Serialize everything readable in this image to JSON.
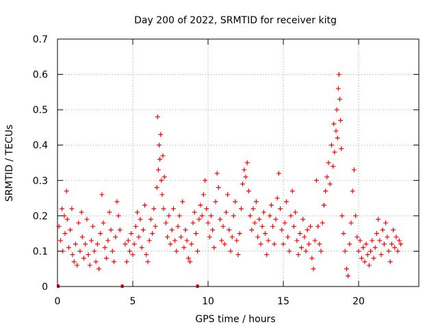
{
  "chart_data": {
    "type": "scatter",
    "title": "Day 200 of 2022, SRMTID for receiver kitg",
    "xlabel": "GPS time / hours",
    "ylabel": "SRMTID / TECUs",
    "xlim": [
      0,
      24
    ],
    "ylim": [
      0,
      0.7
    ],
    "x_ticks": [
      0,
      5,
      10,
      15,
      20
    ],
    "x_tick_labels": [
      "0",
      "5",
      "10",
      "15",
      "20"
    ],
    "y_ticks": [
      0,
      0.1,
      0.2,
      0.3,
      0.4,
      0.5,
      0.6,
      0.7
    ],
    "y_tick_labels": [
      "0",
      "0.1",
      "0.2",
      "0.3",
      "0.4",
      "0.5",
      "0.6",
      "0.7"
    ],
    "grid": true,
    "marker": "plus",
    "series_color": "#ff0000",
    "gap_markers_x": [
      0.05,
      4.3,
      9.3
    ],
    "series": [
      {
        "name": "SRMTID",
        "points": [
          [
            0.1,
            0.17
          ],
          [
            0.2,
            0.13
          ],
          [
            0.3,
            0.22
          ],
          [
            0.35,
            0.1
          ],
          [
            0.45,
            0.2
          ],
          [
            0.5,
            0.15
          ],
          [
            0.6,
            0.27
          ],
          [
            0.65,
            0.19
          ],
          [
            0.75,
            0.11
          ],
          [
            0.85,
            0.16
          ],
          [
            0.95,
            0.22
          ],
          [
            1.0,
            0.09
          ],
          [
            1.1,
            0.07
          ],
          [
            1.2,
            0.12
          ],
          [
            1.3,
            0.06
          ],
          [
            1.4,
            0.18
          ],
          [
            1.5,
            0.1
          ],
          [
            1.6,
            0.21
          ],
          [
            1.65,
            0.14
          ],
          [
            1.75,
            0.08
          ],
          [
            1.85,
            0.12
          ],
          [
            1.95,
            0.19
          ],
          [
            2.05,
            0.09
          ],
          [
            2.15,
            0.06
          ],
          [
            2.25,
            0.13
          ],
          [
            2.35,
            0.17
          ],
          [
            2.45,
            0.1
          ],
          [
            2.55,
            0.07
          ],
          [
            2.65,
            0.12
          ],
          [
            2.75,
            0.05
          ],
          [
            2.85,
            0.15
          ],
          [
            2.95,
            0.26
          ],
          [
            3.05,
            0.18
          ],
          [
            3.15,
            0.11
          ],
          [
            3.25,
            0.08
          ],
          [
            3.35,
            0.13
          ],
          [
            3.45,
            0.21
          ],
          [
            3.55,
            0.16
          ],
          [
            3.65,
            0.1
          ],
          [
            3.75,
            0.07
          ],
          [
            3.85,
            0.14
          ],
          [
            3.95,
            0.24
          ],
          [
            4.05,
            0.2
          ],
          [
            4.15,
            0.16
          ],
          [
            4.5,
            0.12
          ],
          [
            4.6,
            0.07
          ],
          [
            4.7,
            0.13
          ],
          [
            4.8,
            0.1
          ],
          [
            4.9,
            0.15
          ],
          [
            5.0,
            0.09
          ],
          [
            5.1,
            0.12
          ],
          [
            5.2,
            0.17
          ],
          [
            5.3,
            0.21
          ],
          [
            5.4,
            0.14
          ],
          [
            5.5,
            0.19
          ],
          [
            5.6,
            0.11
          ],
          [
            5.7,
            0.16
          ],
          [
            5.8,
            0.23
          ],
          [
            5.9,
            0.09
          ],
          [
            6.0,
            0.07
          ],
          [
            6.1,
            0.13
          ],
          [
            6.2,
            0.19
          ],
          [
            6.3,
            0.15
          ],
          [
            6.4,
            0.22
          ],
          [
            6.5,
            0.17
          ],
          [
            6.6,
            0.28
          ],
          [
            6.65,
            0.48
          ],
          [
            6.7,
            0.33
          ],
          [
            6.75,
            0.4
          ],
          [
            6.8,
            0.36
          ],
          [
            6.85,
            0.43
          ],
          [
            6.9,
            0.3
          ],
          [
            6.95,
            0.26
          ],
          [
            7.0,
            0.37
          ],
          [
            7.05,
            0.22
          ],
          [
            7.1,
            0.31
          ],
          [
            7.2,
            0.18
          ],
          [
            7.3,
            0.14
          ],
          [
            7.4,
            0.2
          ],
          [
            7.5,
            0.12
          ],
          [
            7.6,
            0.16
          ],
          [
            7.7,
            0.22
          ],
          [
            7.8,
            0.13
          ],
          [
            7.9,
            0.1
          ],
          [
            8.0,
            0.17
          ],
          [
            8.1,
            0.2
          ],
          [
            8.2,
            0.14
          ],
          [
            8.3,
            0.24
          ],
          [
            8.4,
            0.11
          ],
          [
            8.5,
            0.16
          ],
          [
            8.6,
            0.13
          ],
          [
            8.7,
            0.08
          ],
          [
            8.8,
            0.07
          ],
          [
            8.9,
            0.12
          ],
          [
            9.0,
            0.18
          ],
          [
            9.1,
            0.21
          ],
          [
            9.2,
            0.15
          ],
          [
            9.3,
            0.1
          ],
          [
            9.4,
            0.19
          ],
          [
            9.5,
            0.23
          ],
          [
            9.6,
            0.2
          ],
          [
            9.7,
            0.26
          ],
          [
            9.8,
            0.3
          ],
          [
            9.9,
            0.22
          ],
          [
            10.0,
            0.18
          ],
          [
            10.1,
            0.14
          ],
          [
            10.2,
            0.2
          ],
          [
            10.3,
            0.16
          ],
          [
            10.4,
            0.11
          ],
          [
            10.5,
            0.24
          ],
          [
            10.6,
            0.32
          ],
          [
            10.7,
            0.28
          ],
          [
            10.8,
            0.19
          ],
          [
            10.9,
            0.13
          ],
          [
            11.0,
            0.17
          ],
          [
            11.1,
            0.12
          ],
          [
            11.2,
            0.21
          ],
          [
            11.3,
            0.26
          ],
          [
            11.4,
            0.16
          ],
          [
            11.5,
            0.1
          ],
          [
            11.6,
            0.14
          ],
          [
            11.7,
            0.2
          ],
          [
            11.8,
            0.24
          ],
          [
            11.9,
            0.13
          ],
          [
            12.0,
            0.09
          ],
          [
            12.1,
            0.15
          ],
          [
            12.2,
            0.22
          ],
          [
            12.3,
            0.29
          ],
          [
            12.4,
            0.33
          ],
          [
            12.5,
            0.31
          ],
          [
            12.6,
            0.35
          ],
          [
            12.7,
            0.27
          ],
          [
            12.8,
            0.2
          ],
          [
            12.9,
            0.16
          ],
          [
            13.0,
            0.22
          ],
          [
            13.1,
            0.18
          ],
          [
            13.2,
            0.24
          ],
          [
            13.3,
            0.14
          ],
          [
            13.4,
            0.19
          ],
          [
            13.5,
            0.12
          ],
          [
            13.6,
            0.17
          ],
          [
            13.7,
            0.21
          ],
          [
            13.8,
            0.15
          ],
          [
            13.9,
            0.09
          ],
          [
            14.0,
            0.13
          ],
          [
            14.1,
            0.2
          ],
          [
            14.2,
            0.23
          ],
          [
            14.3,
            0.17
          ],
          [
            14.4,
            0.12
          ],
          [
            14.5,
            0.19
          ],
          [
            14.6,
            0.25
          ],
          [
            14.7,
            0.32
          ],
          [
            14.8,
            0.22
          ],
          [
            14.9,
            0.16
          ],
          [
            15.0,
            0.12
          ],
          [
            15.1,
            0.18
          ],
          [
            15.2,
            0.24
          ],
          [
            15.3,
            0.14
          ],
          [
            15.4,
            0.1
          ],
          [
            15.5,
            0.2
          ],
          [
            15.6,
            0.27
          ],
          [
            15.7,
            0.17
          ],
          [
            15.8,
            0.21
          ],
          [
            15.9,
            0.13
          ],
          [
            16.0,
            0.09
          ],
          [
            16.1,
            0.15
          ],
          [
            16.2,
            0.11
          ],
          [
            16.3,
            0.19
          ],
          [
            16.4,
            0.14
          ],
          [
            16.5,
            0.1
          ],
          [
            16.6,
            0.16
          ],
          [
            16.7,
            0.12
          ],
          [
            16.8,
            0.17
          ],
          [
            16.9,
            0.08
          ],
          [
            17.0,
            0.05
          ],
          [
            17.1,
            0.13
          ],
          [
            17.2,
            0.3
          ],
          [
            17.3,
            0.17
          ],
          [
            17.4,
            0.12
          ],
          [
            17.5,
            0.1
          ],
          [
            17.6,
            0.18
          ],
          [
            17.7,
            0.23
          ],
          [
            17.8,
            0.27
          ],
          [
            17.9,
            0.31
          ],
          [
            18.0,
            0.35
          ],
          [
            18.1,
            0.29
          ],
          [
            18.2,
            0.4
          ],
          [
            18.3,
            0.34
          ],
          [
            18.35,
            0.46
          ],
          [
            18.4,
            0.38
          ],
          [
            18.5,
            0.44
          ],
          [
            18.55,
            0.5
          ],
          [
            18.6,
            0.42
          ],
          [
            18.65,
            0.56
          ],
          [
            18.7,
            0.6
          ],
          [
            18.75,
            0.53
          ],
          [
            18.8,
            0.47
          ],
          [
            18.85,
            0.39
          ],
          [
            18.9,
            0.2
          ],
          [
            19.0,
            0.15
          ],
          [
            19.1,
            0.1
          ],
          [
            19.2,
            0.05
          ],
          [
            19.3,
            0.03
          ],
          [
            19.4,
            0.12
          ],
          [
            19.5,
            0.18
          ],
          [
            19.6,
            0.27
          ],
          [
            19.7,
            0.33
          ],
          [
            19.8,
            0.2
          ],
          [
            19.9,
            0.14
          ],
          [
            20.0,
            0.1
          ],
          [
            20.1,
            0.13
          ],
          [
            20.2,
            0.08
          ],
          [
            20.3,
            0.11
          ],
          [
            20.4,
            0.07
          ],
          [
            20.5,
            0.12
          ],
          [
            20.6,
            0.09
          ],
          [
            20.7,
            0.06
          ],
          [
            20.8,
            0.1
          ],
          [
            20.9,
            0.13
          ],
          [
            21.0,
            0.08
          ],
          [
            21.1,
            0.11
          ],
          [
            21.2,
            0.15
          ],
          [
            21.3,
            0.19
          ],
          [
            21.4,
            0.13
          ],
          [
            21.5,
            0.09
          ],
          [
            21.6,
            0.16
          ],
          [
            21.7,
            0.12
          ],
          [
            21.8,
            0.18
          ],
          [
            21.9,
            0.14
          ],
          [
            22.0,
            0.1
          ],
          [
            22.1,
            0.07
          ],
          [
            22.2,
            0.12
          ],
          [
            22.3,
            0.16
          ],
          [
            22.4,
            0.11
          ],
          [
            22.5,
            0.14
          ],
          [
            22.6,
            0.1
          ],
          [
            22.7,
            0.13
          ],
          [
            22.8,
            0.12
          ]
        ]
      }
    ]
  }
}
